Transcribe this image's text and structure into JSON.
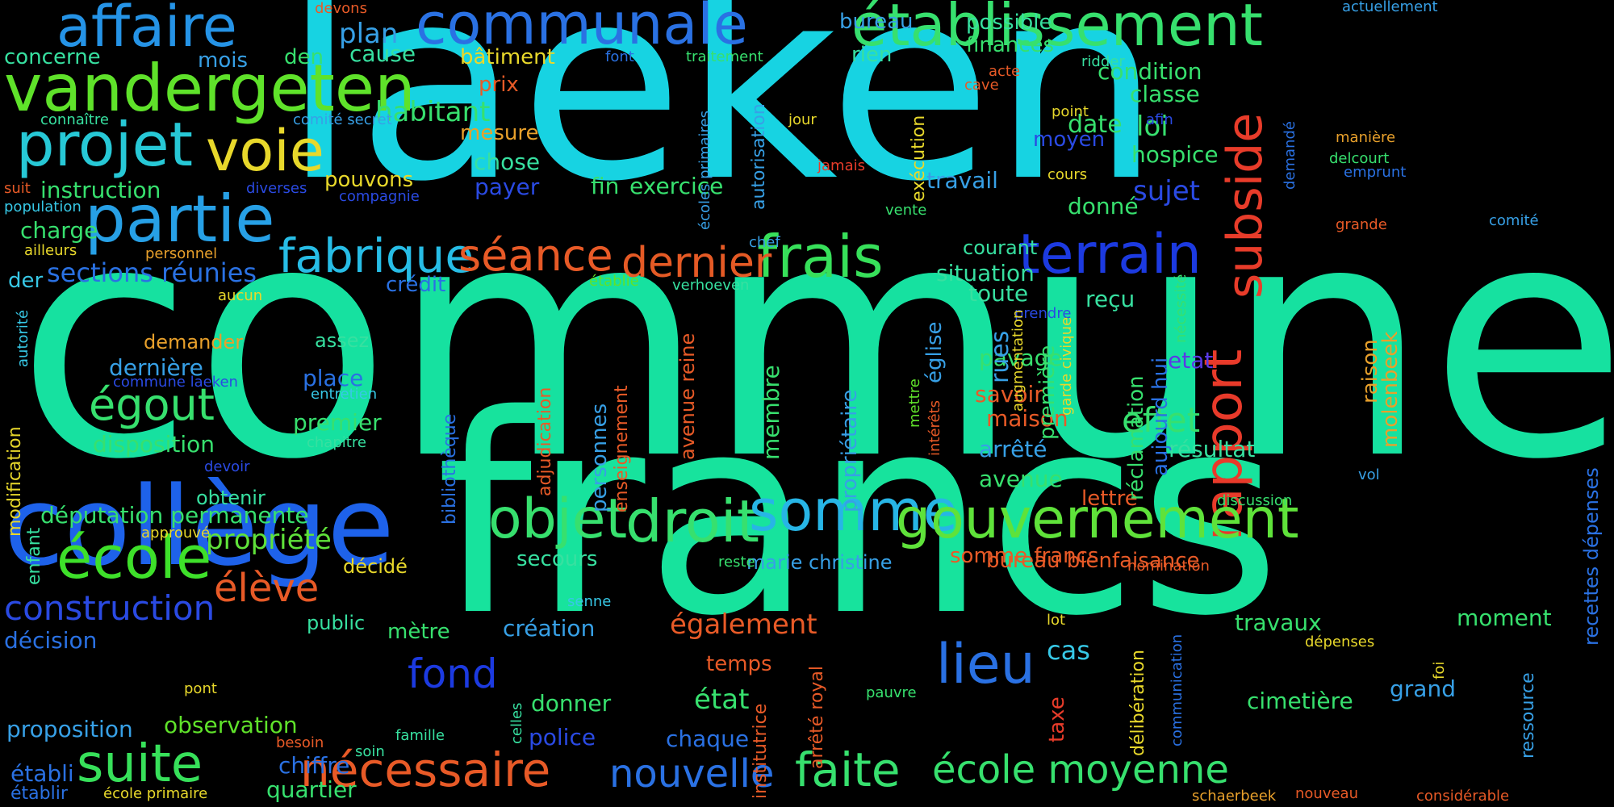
{
  "words": [
    {
      "text": "commune",
      "color": "#16e1a0",
      "vertical": false
    },
    {
      "text": "laeken",
      "color": "#17d3e2",
      "vertical": false
    },
    {
      "text": "francs",
      "color": "#17e39d",
      "vertical": false
    },
    {
      "text": "collège",
      "color": "#1e62ea",
      "vertical": false
    },
    {
      "text": "affaire",
      "color": "#2593e6",
      "vertical": false
    },
    {
      "text": "vandergeten",
      "color": "#5fe22a",
      "vertical": false
    },
    {
      "text": "projet",
      "color": "#27c8d6",
      "vertical": false
    },
    {
      "text": "voie",
      "color": "#e8d82b",
      "vertical": false
    },
    {
      "text": "partie",
      "color": "#27a0e6",
      "vertical": false
    },
    {
      "text": "communale",
      "color": "#2a71e3",
      "vertical": false
    },
    {
      "text": "établissement",
      "color": "#37e06e",
      "vertical": false
    },
    {
      "text": "fabrique",
      "color": "#27bde6",
      "vertical": false
    },
    {
      "text": "séance",
      "color": "#e85a27",
      "vertical": false
    },
    {
      "text": "frais",
      "color": "#37e05a",
      "vertical": false
    },
    {
      "text": "dernier",
      "color": "#e55a25",
      "vertical": false
    },
    {
      "text": "terrain",
      "color": "#1c3ae0",
      "vertical": false
    },
    {
      "text": "subside",
      "color": "#e83c2a",
      "vertical": true
    },
    {
      "text": "rapport",
      "color": "#e83a2a",
      "vertical": true
    },
    {
      "text": "objet",
      "color": "#37e06e",
      "vertical": false
    },
    {
      "text": "droit",
      "color": "#37e06e",
      "vertical": false
    },
    {
      "text": "somme",
      "color": "#27b5e6",
      "vertical": false
    },
    {
      "text": "gouvernement",
      "color": "#5fe23a",
      "vertical": false
    },
    {
      "text": "école",
      "color": "#3ee02a",
      "vertical": false
    },
    {
      "text": "égout",
      "color": "#37e06e",
      "vertical": false
    },
    {
      "text": "élève",
      "color": "#e85a27",
      "vertical": false
    },
    {
      "text": "construction",
      "color": "#2a4ae3",
      "vertical": false
    },
    {
      "text": "suite",
      "color": "#37e05a",
      "vertical": false
    },
    {
      "text": "nécessaire",
      "color": "#e85a27",
      "vertical": false
    },
    {
      "text": "nouvelle",
      "color": "#2a71e3",
      "vertical": false
    },
    {
      "text": "faite",
      "color": "#37e06e",
      "vertical": false
    },
    {
      "text": "école moyenne",
      "color": "#37e06e",
      "vertical": false
    },
    {
      "text": "lieu",
      "color": "#2a71e3",
      "vertical": false
    },
    {
      "text": "fond",
      "color": "#1c3ae0",
      "vertical": false
    },
    {
      "text": "effet",
      "color": "#37e06e",
      "vertical": false
    },
    {
      "text": "sections réunies",
      "color": "#2a71e3",
      "vertical": false
    },
    {
      "text": "propriété",
      "color": "#5fe23a",
      "vertical": false
    },
    {
      "text": "députation permanente",
      "color": "#37e06e",
      "vertical": false
    },
    {
      "text": "instruction",
      "color": "#37e06e",
      "vertical": false
    },
    {
      "text": "habitant",
      "color": "#37e06e",
      "vertical": false
    },
    {
      "text": "exercice",
      "color": "#37e06e",
      "vertical": false
    },
    {
      "text": "travail",
      "color": "#37a0e6",
      "vertical": false
    },
    {
      "text": "sujet",
      "color": "#2a4ae3",
      "vertical": false
    },
    {
      "text": "hospice",
      "color": "#37e06e",
      "vertical": false
    },
    {
      "text": "loi",
      "color": "#37e06e",
      "vertical": false
    },
    {
      "text": "classe",
      "color": "#37e06e",
      "vertical": false
    },
    {
      "text": "condition",
      "color": "#37e06e",
      "vertical": false
    },
    {
      "text": "date",
      "color": "#37e06e",
      "vertical": false
    },
    {
      "text": "donné",
      "color": "#37e06e",
      "vertical": false
    },
    {
      "text": "courant",
      "color": "#37e0a0",
      "vertical": false
    },
    {
      "text": "situation",
      "color": "#37e0a0",
      "vertical": false
    },
    {
      "text": "reçu",
      "color": "#37e0a0",
      "vertical": false
    },
    {
      "text": "toute",
      "color": "#37e0a0",
      "vertical": false
    },
    {
      "text": "pavage",
      "color": "#37e06e",
      "vertical": false
    },
    {
      "text": "savoir",
      "color": "#e85a27",
      "vertical": false
    },
    {
      "text": "maison",
      "color": "#e85a27",
      "vertical": false
    },
    {
      "text": "arrêté",
      "color": "#37a0e6",
      "vertical": false
    },
    {
      "text": "avenue",
      "color": "#37e06e",
      "vertical": false
    },
    {
      "text": "lettre",
      "color": "#e85a27",
      "vertical": false
    },
    {
      "text": "résultat",
      "color": "#37e0a0",
      "vertical": false
    },
    {
      "text": "etat",
      "color": "#5a3ae6",
      "vertical": false
    },
    {
      "text": "bureau bienfaisance",
      "color": "#e85a27",
      "vertical": false
    },
    {
      "text": "somme francs",
      "color": "#e85a27",
      "vertical": false
    },
    {
      "text": "marie christine",
      "color": "#37a0e6",
      "vertical": false
    },
    {
      "text": "secours",
      "color": "#37e0a0",
      "vertical": false
    },
    {
      "text": "création",
      "color": "#37a0e6",
      "vertical": false
    },
    {
      "text": "également",
      "color": "#e85a27",
      "vertical": false
    },
    {
      "text": "temps",
      "color": "#e85a27",
      "vertical": false
    },
    {
      "text": "état",
      "color": "#37e06e",
      "vertical": false
    },
    {
      "text": "chaque",
      "color": "#2a71e3",
      "vertical": false
    },
    {
      "text": "donner",
      "color": "#37e06e",
      "vertical": false
    },
    {
      "text": "police",
      "color": "#2a4ae3",
      "vertical": false
    },
    {
      "text": "cas",
      "color": "#37c8e6",
      "vertical": false
    },
    {
      "text": "travaux",
      "color": "#37e06e",
      "vertical": false
    },
    {
      "text": "moment",
      "color": "#37e06e",
      "vertical": false
    },
    {
      "text": "grand",
      "color": "#37a0e6",
      "vertical": false
    },
    {
      "text": "cimetière",
      "color": "#37e06e",
      "vertical": false
    },
    {
      "text": "proposition",
      "color": "#37a0e6",
      "vertical": false
    },
    {
      "text": "observation",
      "color": "#5fe22a",
      "vertical": false
    },
    {
      "text": "chiffre",
      "color": "#2a71e3",
      "vertical": false
    },
    {
      "text": "quartier",
      "color": "#37e06e",
      "vertical": false
    },
    {
      "text": "établi",
      "color": "#2a71e3",
      "vertical": false
    },
    {
      "text": "établir",
      "color": "#2a71e3",
      "vertical": false
    },
    {
      "text": "école primaire",
      "color": "#e8d82b",
      "vertical": false
    },
    {
      "text": "décision",
      "color": "#2a71e3",
      "vertical": false
    },
    {
      "text": "public",
      "color": "#37e0a0",
      "vertical": false
    },
    {
      "text": "mètre",
      "color": "#37e06e",
      "vertical": false
    },
    {
      "text": "décidé",
      "color": "#e8d82b",
      "vertical": false
    },
    {
      "text": "obtenir",
      "color": "#37e0a0",
      "vertical": false
    },
    {
      "text": "disposition",
      "color": "#37e06e",
      "vertical": false
    },
    {
      "text": "premier",
      "color": "#37e06e",
      "vertical": false
    },
    {
      "text": "dernière",
      "color": "#37a0e6",
      "vertical": false
    },
    {
      "text": "demander",
      "color": "#e8a02b",
      "vertical": false
    },
    {
      "text": "assez",
      "color": "#37e0a0",
      "vertical": false
    },
    {
      "text": "place",
      "color": "#2a71e3",
      "vertical": false
    },
    {
      "text": "charge",
      "color": "#37e06e",
      "vertical": false
    },
    {
      "text": "der",
      "color": "#37c8e6",
      "vertical": false
    },
    {
      "text": "crédit",
      "color": "#2a71e3",
      "vertical": false
    },
    {
      "text": "payer",
      "color": "#2a4ae3",
      "vertical": false
    },
    {
      "text": "fin",
      "color": "#37e06e",
      "vertical": false
    },
    {
      "text": "chose",
      "color": "#37e0a0",
      "vertical": false
    },
    {
      "text": "mesure",
      "color": "#e8a02b",
      "vertical": false
    },
    {
      "text": "prix",
      "color": "#e85a27",
      "vertical": false
    },
    {
      "text": "bâtiment",
      "color": "#e8d82b",
      "vertical": false
    },
    {
      "text": "plan",
      "color": "#37a0e6",
      "vertical": false
    },
    {
      "text": "cause",
      "color": "#37e0a0",
      "vertical": false
    },
    {
      "text": "mois",
      "color": "#37a0e6",
      "vertical": false
    },
    {
      "text": "den",
      "color": "#37e06e",
      "vertical": false
    },
    {
      "text": "concerne",
      "color": "#37e0a0",
      "vertical": false
    },
    {
      "text": "pouvons",
      "color": "#e8d82b",
      "vertical": false
    },
    {
      "text": "bureau",
      "color": "#37a0e6",
      "vertical": false
    },
    {
      "text": "rien",
      "color": "#37e0a0",
      "vertical": false
    },
    {
      "text": "possible",
      "color": "#37e0a0",
      "vertical": false
    },
    {
      "text": "finances",
      "color": "#37e06e",
      "vertical": false
    },
    {
      "text": "moyen",
      "color": "#2a4ae3",
      "vertical": false
    },
    {
      "text": "membre",
      "color": "#37e06e",
      "vertical": true
    },
    {
      "text": "rues",
      "color": "#37a0e6",
      "vertical": true
    },
    {
      "text": "réclamation",
      "color": "#37e06e",
      "vertical": true
    },
    {
      "text": "aujourd hui",
      "color": "#2a71e3",
      "vertical": true
    },
    {
      "text": "première",
      "color": "#37e06e",
      "vertical": true
    },
    {
      "text": "raison",
      "color": "#e8a02b",
      "vertical": true
    },
    {
      "text": "molenbeek",
      "color": "#e8a02b",
      "vertical": true
    },
    {
      "text": "propriétaire",
      "color": "#37a0e6",
      "vertical": true
    },
    {
      "text": "église",
      "color": "#37a0e6",
      "vertical": true
    },
    {
      "text": "avenue reine",
      "color": "#e85a27",
      "vertical": true
    },
    {
      "text": "personnes",
      "color": "#37a0e6",
      "vertical": true
    },
    {
      "text": "enseignement",
      "color": "#e85a27",
      "vertical": true
    },
    {
      "text": "adjudication",
      "color": "#e85a27",
      "vertical": true
    },
    {
      "text": "bibliothèque",
      "color": "#2a71e3",
      "vertical": true
    },
    {
      "text": "modification",
      "color": "#e8d82b",
      "vertical": true
    },
    {
      "text": "enfant",
      "color": "#37e0a0",
      "vertical": true
    },
    {
      "text": "arrêté royal",
      "color": "#e85a27",
      "vertical": true
    },
    {
      "text": "délibération",
      "color": "#e8d82b",
      "vertical": true
    },
    {
      "text": "taxe",
      "color": "#e83c2a",
      "vertical": true
    },
    {
      "text": "institutrice",
      "color": "#e85a27",
      "vertical": true
    },
    {
      "text": "ressource",
      "color": "#37a0e6",
      "vertical": true
    },
    {
      "text": "recettes dépenses",
      "color": "#2a71e3",
      "vertical": true
    },
    {
      "text": "autorisation",
      "color": "#37a0e6",
      "vertical": true
    },
    {
      "text": "exécution",
      "color": "#e8d82b",
      "vertical": true
    },
    {
      "text": "écoles primaires",
      "color": "#37a0e6",
      "vertical": true
    },
    {
      "text": "autorité",
      "color": "#37c8e6",
      "vertical": true
    },
    {
      "text": "devons",
      "color": "#e85a27",
      "vertical": false
    },
    {
      "text": "connaître",
      "color": "#37e0a0",
      "vertical": false
    },
    {
      "text": "comité secret",
      "color": "#37a0e6",
      "vertical": false
    },
    {
      "text": "suit",
      "color": "#e85a27",
      "vertical": false
    },
    {
      "text": "population",
      "color": "#37c8e6",
      "vertical": false
    },
    {
      "text": "diverses",
      "color": "#2a4ae3",
      "vertical": false
    },
    {
      "text": "compagnie",
      "color": "#2a4ae3",
      "vertical": false
    },
    {
      "text": "ailleurs",
      "color": "#e8d82b",
      "vertical": false
    },
    {
      "text": "personnel",
      "color": "#e8a02b",
      "vertical": false
    },
    {
      "text": "aucun",
      "color": "#e8d82b",
      "vertical": false
    },
    {
      "text": "commune laeken",
      "color": "#2a4ae3",
      "vertical": false
    },
    {
      "text": "entretien",
      "color": "#37c8e6",
      "vertical": false
    },
    {
      "text": "chapitre",
      "color": "#37e0a0",
      "vertical": false
    },
    {
      "text": "devoir",
      "color": "#2a4ae3",
      "vertical": false
    },
    {
      "text": "approuvé",
      "color": "#e8d82b",
      "vertical": false
    },
    {
      "text": "pont",
      "color": "#e8d82b",
      "vertical": false
    },
    {
      "text": "besoin",
      "color": "#e85a27",
      "vertical": false
    },
    {
      "text": "famille",
      "color": "#37e0a0",
      "vertical": false
    },
    {
      "text": "soin",
      "color": "#37e0a0",
      "vertical": false
    },
    {
      "text": "font",
      "color": "#2a71e3",
      "vertical": false
    },
    {
      "text": "traitement",
      "color": "#37e06e",
      "vertical": false
    },
    {
      "text": "acte",
      "color": "#e85a27",
      "vertical": false
    },
    {
      "text": "ridder",
      "color": "#37e0a0",
      "vertical": false
    },
    {
      "text": "cave",
      "color": "#e85a27",
      "vertical": false
    },
    {
      "text": "jour",
      "color": "#e8d82b",
      "vertical": false
    },
    {
      "text": "point",
      "color": "#e8d82b",
      "vertical": false
    },
    {
      "text": "afin",
      "color": "#2a4ae3",
      "vertical": false
    },
    {
      "text": "jamais",
      "color": "#e83c2a",
      "vertical": false
    },
    {
      "text": "cours",
      "color": "#e8d82b",
      "vertical": false
    },
    {
      "text": "vente",
      "color": "#37e06e",
      "vertical": false
    },
    {
      "text": "chef",
      "color": "#37a0e6",
      "vertical": false
    },
    {
      "text": "établie",
      "color": "#5fe22a",
      "vertical": false
    },
    {
      "text": "verhoeven",
      "color": "#37e0a0",
      "vertical": false
    },
    {
      "text": "prendre",
      "color": "#2a4ae3",
      "vertical": false
    },
    {
      "text": "actuellement",
      "color": "#37a0e6",
      "vertical": false
    },
    {
      "text": "manière",
      "color": "#e8a02b",
      "vertical": false
    },
    {
      "text": "delcourt",
      "color": "#37e06e",
      "vertical": false
    },
    {
      "text": "emprunt",
      "color": "#2a71e3",
      "vertical": false
    },
    {
      "text": "grande",
      "color": "#e85a27",
      "vertical": false
    },
    {
      "text": "comité",
      "color": "#37a0e6",
      "vertical": false
    },
    {
      "text": "vol",
      "color": "#37a0e6",
      "vertical": false
    },
    {
      "text": "discussion",
      "color": "#37e06e",
      "vertical": false
    },
    {
      "text": "nomination",
      "color": "#e85a27",
      "vertical": false
    },
    {
      "text": "reste",
      "color": "#37e06e",
      "vertical": false
    },
    {
      "text": "senne",
      "color": "#37c8e6",
      "vertical": false
    },
    {
      "text": "lot",
      "color": "#e8d82b",
      "vertical": false
    },
    {
      "text": "dépenses",
      "color": "#e8d82b",
      "vertical": false
    },
    {
      "text": "pauvre",
      "color": "#37e06e",
      "vertical": false
    },
    {
      "text": "schaerbeek",
      "color": "#e8a02b",
      "vertical": false
    },
    {
      "text": "nouveau",
      "color": "#e85a27",
      "vertical": false
    },
    {
      "text": "considérable",
      "color": "#e85a27",
      "vertical": false
    },
    {
      "text": "demandé",
      "color": "#2a71e3",
      "vertical": true
    },
    {
      "text": "nécessité",
      "color": "#37e06e",
      "vertical": true
    },
    {
      "text": "garde civique",
      "color": "#e8d82b",
      "vertical": true
    },
    {
      "text": "augmentation",
      "color": "#e8d82b",
      "vertical": true
    },
    {
      "text": "mettre",
      "color": "#5fe22a",
      "vertical": true
    },
    {
      "text": "intérêts",
      "color": "#e85a27",
      "vertical": true
    },
    {
      "text": "celles",
      "color": "#37e0a0",
      "vertical": true
    },
    {
      "text": "communication",
      "color": "#2a71e3",
      "vertical": true
    },
    {
      "text": "foi",
      "color": "#e8d82b",
      "vertical": true
    }
  ]
}
